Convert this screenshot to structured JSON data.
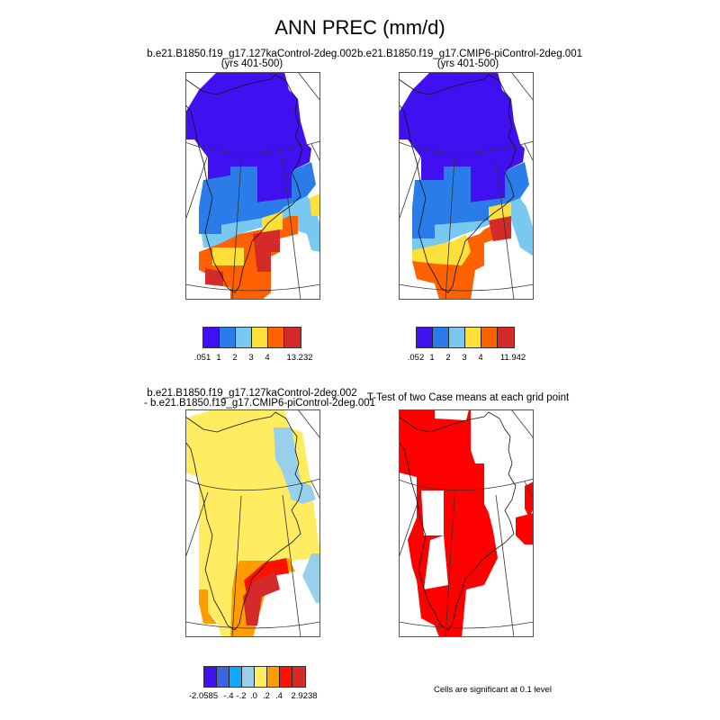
{
  "chart_data": [
    {
      "type": "heatmap",
      "title": "b.e21.B1850.f19_g17.127kaControl-2deg.002",
      "subtitle": "(yrs 401-500)",
      "colorbar": {
        "colors": [
          "#4010f0",
          "#2a7de8",
          "#78c8f0",
          "#ffe03a",
          "#ff6000",
          "#d42a2a"
        ],
        "labels": [
          ".051",
          "1",
          "2",
          "3",
          "4",
          "",
          "13.232"
        ]
      }
    },
    {
      "type": "heatmap",
      "title": "b.e21.B1850.f19_g17.CMIP6-piControl-2deg.001",
      "subtitle": "(yrs 401-500)",
      "colorbar": {
        "colors": [
          "#4010f0",
          "#2a7de8",
          "#78c8f0",
          "#ffe03a",
          "#ff6000",
          "#d42a2a"
        ],
        "labels": [
          ".052",
          "1",
          "2",
          "3",
          "4",
          "",
          "11.942"
        ]
      }
    },
    {
      "type": "heatmap",
      "title": "b.e21.B1850.f19_g17.127kaControl-2deg.002",
      "subtitle": "- b.e21.B1850.f19_g17.CMIP6-piControl-2deg.001",
      "colorbar": {
        "colors": [
          "#4010f0",
          "#3c64dc",
          "#10a8f8",
          "#98d0ec",
          "#ffec60",
          "#ff9c00",
          "#ff1000",
          "#d42a2a"
        ],
        "labels": [
          "-2.0585",
          "",
          "-.4",
          "-.2",
          ".0",
          ".2",
          ".4",
          "",
          "2.9238"
        ]
      }
    },
    {
      "type": "heatmap",
      "title": "T-Test of two Case means at each grid point",
      "significant_color": "#ff0000",
      "note": "Cells are significant at 0.1 level"
    }
  ],
  "header": {
    "title": "ANN PREC (mm/d)"
  }
}
